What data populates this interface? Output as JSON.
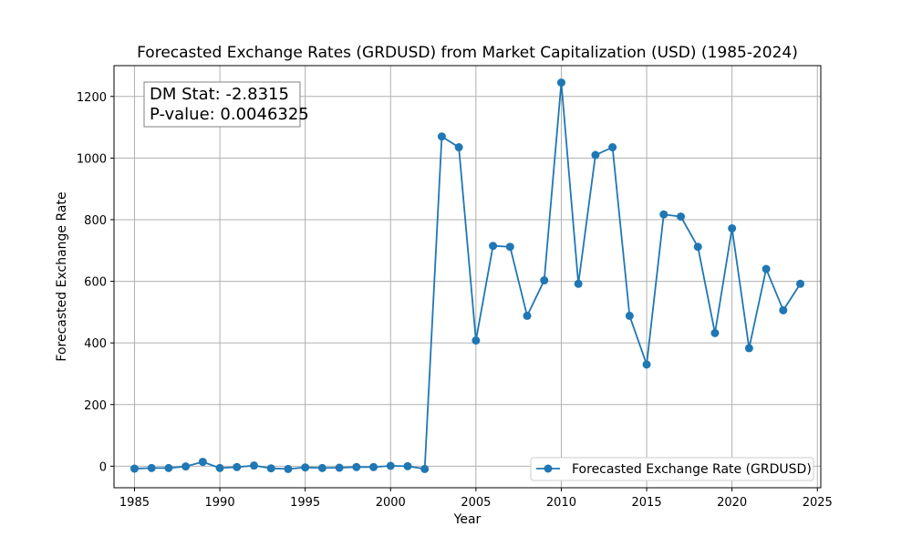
{
  "chart_data": {
    "type": "line",
    "title": "Forecasted Exchange Rates (GRDUSD) from Market Capitalization (USD) (1985-2024)",
    "xlabel": "Year",
    "ylabel": "Forecasted Exchange Rate",
    "xlim": [
      1983.8,
      2025.2
    ],
    "ylim": [
      -70,
      1300
    ],
    "x_ticks": [
      1985,
      1990,
      1995,
      2000,
      2005,
      2010,
      2015,
      2020,
      2025
    ],
    "y_ticks": [
      0,
      200,
      400,
      600,
      800,
      1000,
      1200
    ],
    "grid": true,
    "legend_position": "lower-right",
    "annotation": {
      "line1": "DM Stat: -2.8315",
      "line2": "P-value: 0.0046325"
    },
    "colors": {
      "series": "#1f77b4",
      "grid": "#b0b0b0"
    },
    "series": [
      {
        "name": "Forecasted Exchange Rate (GRDUSD)",
        "marker": "circle",
        "x": [
          1985,
          1986,
          1987,
          1988,
          1989,
          1990,
          1991,
          1992,
          1993,
          1994,
          1995,
          1996,
          1997,
          1998,
          1999,
          2000,
          2001,
          2002,
          2003,
          2004,
          2005,
          2006,
          2007,
          2008,
          2009,
          2010,
          2011,
          2012,
          2013,
          2014,
          2015,
          2016,
          2017,
          2018,
          2019,
          2020,
          2021,
          2022,
          2023,
          2024
        ],
        "values": [
          -8,
          -6,
          -6,
          -1,
          14,
          -6,
          -3,
          2,
          -7,
          -9,
          -4,
          -6,
          -5,
          -3,
          -3,
          1,
          0,
          -9,
          1070,
          1035,
          408,
          715,
          712,
          488,
          603,
          1245,
          592,
          1010,
          1035,
          488,
          330,
          817,
          810,
          712,
          432,
          772,
          383,
          640,
          506,
          592
        ]
      }
    ]
  }
}
